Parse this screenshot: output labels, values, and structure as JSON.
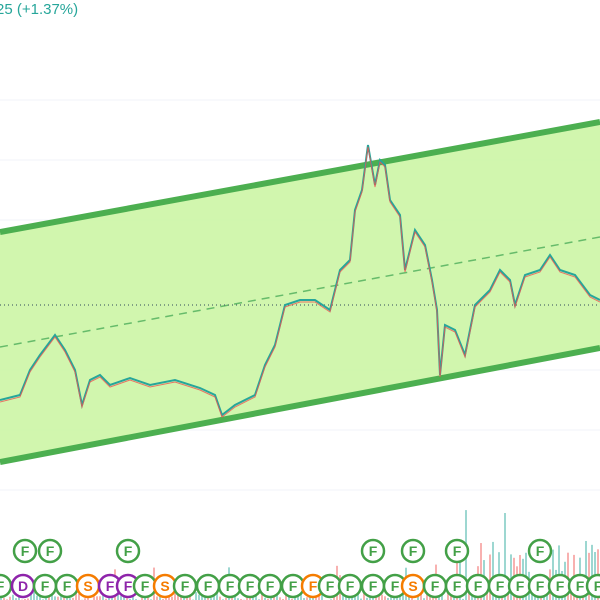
{
  "header": {
    "change_text": "25 (+1.37%)"
  },
  "markers": {
    "row1": [
      {
        "label": "F",
        "color": "#43a047"
      },
      {
        "label": "F",
        "color": "#43a047"
      },
      {
        "label": "F",
        "color": "#43a047"
      },
      {
        "label": "F",
        "color": "#43a047"
      },
      {
        "label": "F",
        "color": "#43a047"
      },
      {
        "label": "F",
        "color": "#43a047"
      },
      {
        "label": "F",
        "color": "#43a047"
      }
    ],
    "row2": [
      {
        "label": "F",
        "color": "#43a047"
      },
      {
        "label": "D",
        "color": "#8e24aa"
      },
      {
        "label": "F",
        "color": "#43a047"
      },
      {
        "label": "F",
        "color": "#43a047"
      },
      {
        "label": "S",
        "color": "#f57c00"
      },
      {
        "label": "F",
        "color": "#8e24aa"
      },
      {
        "label": "F",
        "color": "#8e24aa"
      },
      {
        "label": "F",
        "color": "#43a047"
      },
      {
        "label": "S",
        "color": "#f57c00"
      },
      {
        "label": "F",
        "color": "#43a047"
      },
      {
        "label": "F",
        "color": "#43a047"
      },
      {
        "label": "F",
        "color": "#43a047"
      },
      {
        "label": "F",
        "color": "#43a047"
      },
      {
        "label": "F",
        "color": "#43a047"
      },
      {
        "label": "F",
        "color": "#43a047"
      },
      {
        "label": "F",
        "color": "#f57c00"
      },
      {
        "label": "F",
        "color": "#43a047"
      },
      {
        "label": "F",
        "color": "#43a047"
      },
      {
        "label": "F",
        "color": "#43a047"
      },
      {
        "label": "F",
        "color": "#43a047"
      },
      {
        "label": "S",
        "color": "#f57c00"
      },
      {
        "label": "F",
        "color": "#43a047"
      },
      {
        "label": "F",
        "color": "#43a047"
      },
      {
        "label": "F",
        "color": "#43a047"
      },
      {
        "label": "F",
        "color": "#43a047"
      },
      {
        "label": "F",
        "color": "#43a047"
      },
      {
        "label": "F",
        "color": "#43a047"
      },
      {
        "label": "F",
        "color": "#43a047"
      },
      {
        "label": "F",
        "color": "#43a047"
      },
      {
        "label": "F",
        "color": "#43a047"
      }
    ]
  }
}
